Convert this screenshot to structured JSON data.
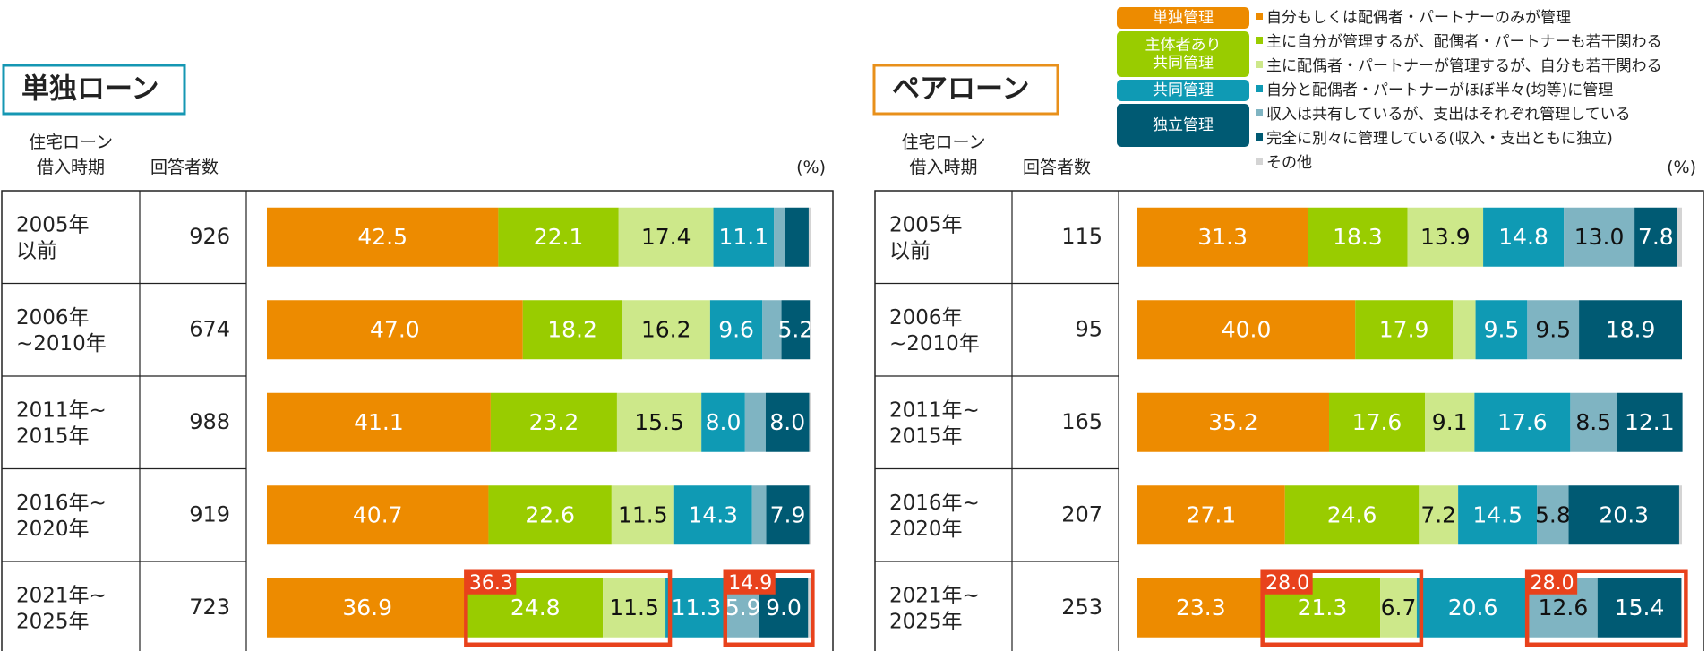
{
  "legend": {
    "groups": [
      {
        "label": "単独管理",
        "color": "#ed8b00",
        "items": [
          0
        ]
      },
      {
        "label_lines": [
          "主体者あり",
          "共同管理"
        ],
        "color": "#99cc00",
        "items": [
          1,
          2
        ]
      },
      {
        "label": "共同管理",
        "color": "#0f9ab4",
        "items": [
          3
        ]
      },
      {
        "label": "独立管理",
        "color": "#005a73",
        "items": [
          4,
          5,
          6
        ]
      }
    ],
    "items": [
      {
        "label": "自分もしくは配偶者・パートナーのみが管理",
        "color": "#ed8b00"
      },
      {
        "label": "主に自分が管理するが、配偶者・パートナーも若干関わる",
        "color": "#99cc00"
      },
      {
        "label": "主に配偶者・パートナーが管理するが、自分も若干関わる",
        "color": "#cde88a"
      },
      {
        "label": "自分と配偶者・パートナーがほぼ半々(均等)に管理",
        "color": "#0f9ab4"
      },
      {
        "label": "収入は共有しているが、支出はそれぞれ管理している",
        "color": "#7fb4c2"
      },
      {
        "label": "完全に別々に管理している(収入・支出ともに独立)",
        "color": "#005a73"
      },
      {
        "label": "その他",
        "color": "#d4d4d4"
      }
    ]
  },
  "chart_data": [
    {
      "type": "bar",
      "orientation": "horizontal",
      "stacked": true,
      "title": "単独ローン",
      "col_header_period": [
        "住宅ローン",
        "借入時期"
      ],
      "col_header_count": "回答者数",
      "unit": "(%)",
      "xlim": [
        0,
        100
      ],
      "rows": [
        {
          "period": [
            "2005年",
            "以前"
          ],
          "count": "926",
          "values": [
            42.5,
            22.1,
            17.4,
            11.1,
            2.0,
            4.4,
            0.5
          ],
          "labels": [
            "42.5",
            "22.1",
            "17.4",
            "11.1",
            "",
            "",
            ""
          ]
        },
        {
          "period": [
            "2006年",
            "~2010年"
          ],
          "count": "674",
          "values": [
            47.0,
            18.2,
            16.2,
            9.6,
            3.5,
            5.2,
            0.3
          ],
          "labels": [
            "47.0",
            "18.2",
            "16.2",
            "9.6",
            "",
            "5.2",
            ""
          ]
        },
        {
          "period": [
            "2011年~",
            "2015年"
          ],
          "count": "988",
          "values": [
            41.1,
            23.2,
            15.5,
            8.0,
            3.8,
            8.0,
            0.4
          ],
          "labels": [
            "41.1",
            "23.2",
            "15.5",
            "8.0",
            "",
            "8.0",
            ""
          ]
        },
        {
          "period": [
            "2016年~",
            "2020年"
          ],
          "count": "919",
          "values": [
            40.7,
            22.6,
            11.5,
            14.3,
            2.6,
            7.9,
            0.4
          ],
          "labels": [
            "40.7",
            "22.6",
            "11.5",
            "14.3",
            "",
            "7.9",
            ""
          ]
        },
        {
          "period": [
            "2021年~",
            "2025年"
          ],
          "count": "723",
          "values": [
            36.9,
            24.8,
            11.5,
            11.3,
            5.9,
            9.0,
            0.6
          ],
          "labels": [
            "36.9",
            "24.8",
            "11.5",
            "11.3",
            "5.9",
            "9.0",
            ""
          ]
        }
      ],
      "highlights": [
        {
          "row": 4,
          "segments": [
            1,
            2
          ],
          "label": "36.3"
        },
        {
          "row": 4,
          "segments": [
            4,
            5
          ],
          "label": "14.9"
        }
      ]
    },
    {
      "type": "bar",
      "orientation": "horizontal",
      "stacked": true,
      "title": "ペアローン",
      "col_header_period": [
        "住宅ローン",
        "借入時期"
      ],
      "col_header_count": "回答者数",
      "unit": "(%)",
      "xlim": [
        0,
        100
      ],
      "rows": [
        {
          "period": [
            "2005年",
            "以前"
          ],
          "count": "115",
          "values": [
            31.3,
            18.3,
            13.9,
            14.8,
            13.0,
            7.8,
            0.9
          ],
          "labels": [
            "31.3",
            "18.3",
            "13.9",
            "14.8",
            "13.0",
            "7.8",
            ""
          ]
        },
        {
          "period": [
            "2006年",
            "~2010年"
          ],
          "count": "95",
          "values": [
            40.0,
            17.9,
            4.2,
            9.5,
            9.5,
            18.9,
            0.0
          ],
          "labels": [
            "40.0",
            "17.9",
            "",
            "9.5",
            "9.5",
            "18.9",
            ""
          ]
        },
        {
          "period": [
            "2011年~",
            "2015年"
          ],
          "count": "165",
          "values": [
            35.2,
            17.6,
            9.1,
            17.6,
            8.5,
            12.1,
            0.0
          ],
          "labels": [
            "35.2",
            "17.6",
            "9.1",
            "17.6",
            "8.5",
            "12.1",
            ""
          ]
        },
        {
          "period": [
            "2016年~",
            "2020年"
          ],
          "count": "207",
          "values": [
            27.1,
            24.6,
            7.2,
            14.5,
            5.8,
            20.3,
            0.5
          ],
          "labels": [
            "27.1",
            "24.6",
            "7.2",
            "14.5",
            "5.8",
            "20.3",
            ""
          ]
        },
        {
          "period": [
            "2021年~",
            "2025年"
          ],
          "count": "253",
          "values": [
            23.3,
            21.3,
            6.7,
            20.6,
            12.6,
            15.4,
            0.1
          ],
          "labels": [
            "23.3",
            "21.3",
            "6.7",
            "20.6",
            "12.6",
            "15.4",
            ""
          ]
        }
      ],
      "highlights": [
        {
          "row": 4,
          "segments": [
            1,
            2
          ],
          "label": "28.0"
        },
        {
          "row": 4,
          "segments": [
            4,
            5
          ],
          "label": "28.0"
        }
      ]
    }
  ]
}
